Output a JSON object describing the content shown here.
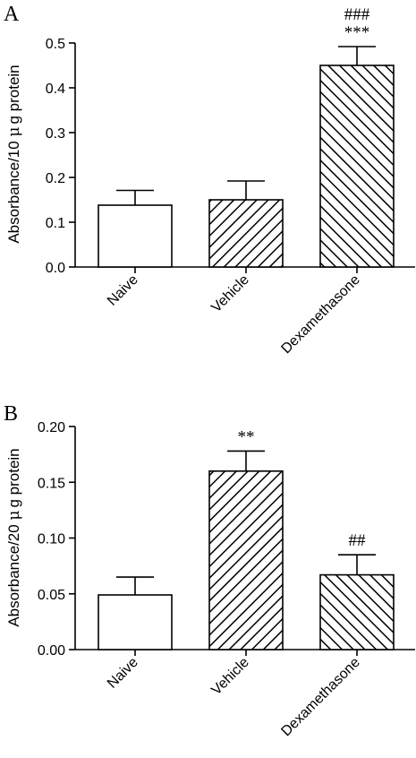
{
  "colors": {
    "bar_stroke": "#000000",
    "bar_fill_plain": "#ffffff",
    "hatch": "#000000"
  },
  "chart_data": [
    {
      "type": "bar",
      "panel_label": "A",
      "categories": [
        "Naive",
        "Vehicle",
        "Dexamethasone"
      ],
      "values": [
        0.138,
        0.15,
        0.45
      ],
      "errors": [
        0.033,
        0.042,
        0.042
      ],
      "fills": [
        "plain",
        "hatch-fwd",
        "hatch-back"
      ],
      "annotations": [
        [],
        [],
        [
          "###",
          "***"
        ]
      ],
      "ylabel_prefix": "Absorbance/10 ",
      "ylabel_mu": "μ",
      "ylabel_suffix": "g protein",
      "ylim": [
        0,
        0.5
      ],
      "yticks": [
        "0.0",
        "0.1",
        "0.2",
        "0.3",
        "0.4",
        "0.5"
      ],
      "ytick_values": [
        0,
        0.1,
        0.2,
        0.3,
        0.4,
        0.5
      ],
      "grid": false
    },
    {
      "type": "bar",
      "panel_label": "B",
      "categories": [
        "Naive",
        "Vehicle",
        "Dexamethasone"
      ],
      "values": [
        0.049,
        0.16,
        0.067
      ],
      "errors": [
        0.016,
        0.018,
        0.018
      ],
      "fills": [
        "plain",
        "hatch-fwd",
        "hatch-back"
      ],
      "annotations": [
        [],
        [
          "**"
        ],
        [
          "##"
        ]
      ],
      "ylabel_prefix": "Absorbance/20 ",
      "ylabel_mu": "μ",
      "ylabel_suffix": "g protein",
      "ylim": [
        0,
        0.2
      ],
      "yticks": [
        "0.00",
        "0.05",
        "0.10",
        "0.15",
        "0.20"
      ],
      "ytick_values": [
        0,
        0.05,
        0.1,
        0.15,
        0.2
      ],
      "grid": false
    }
  ]
}
